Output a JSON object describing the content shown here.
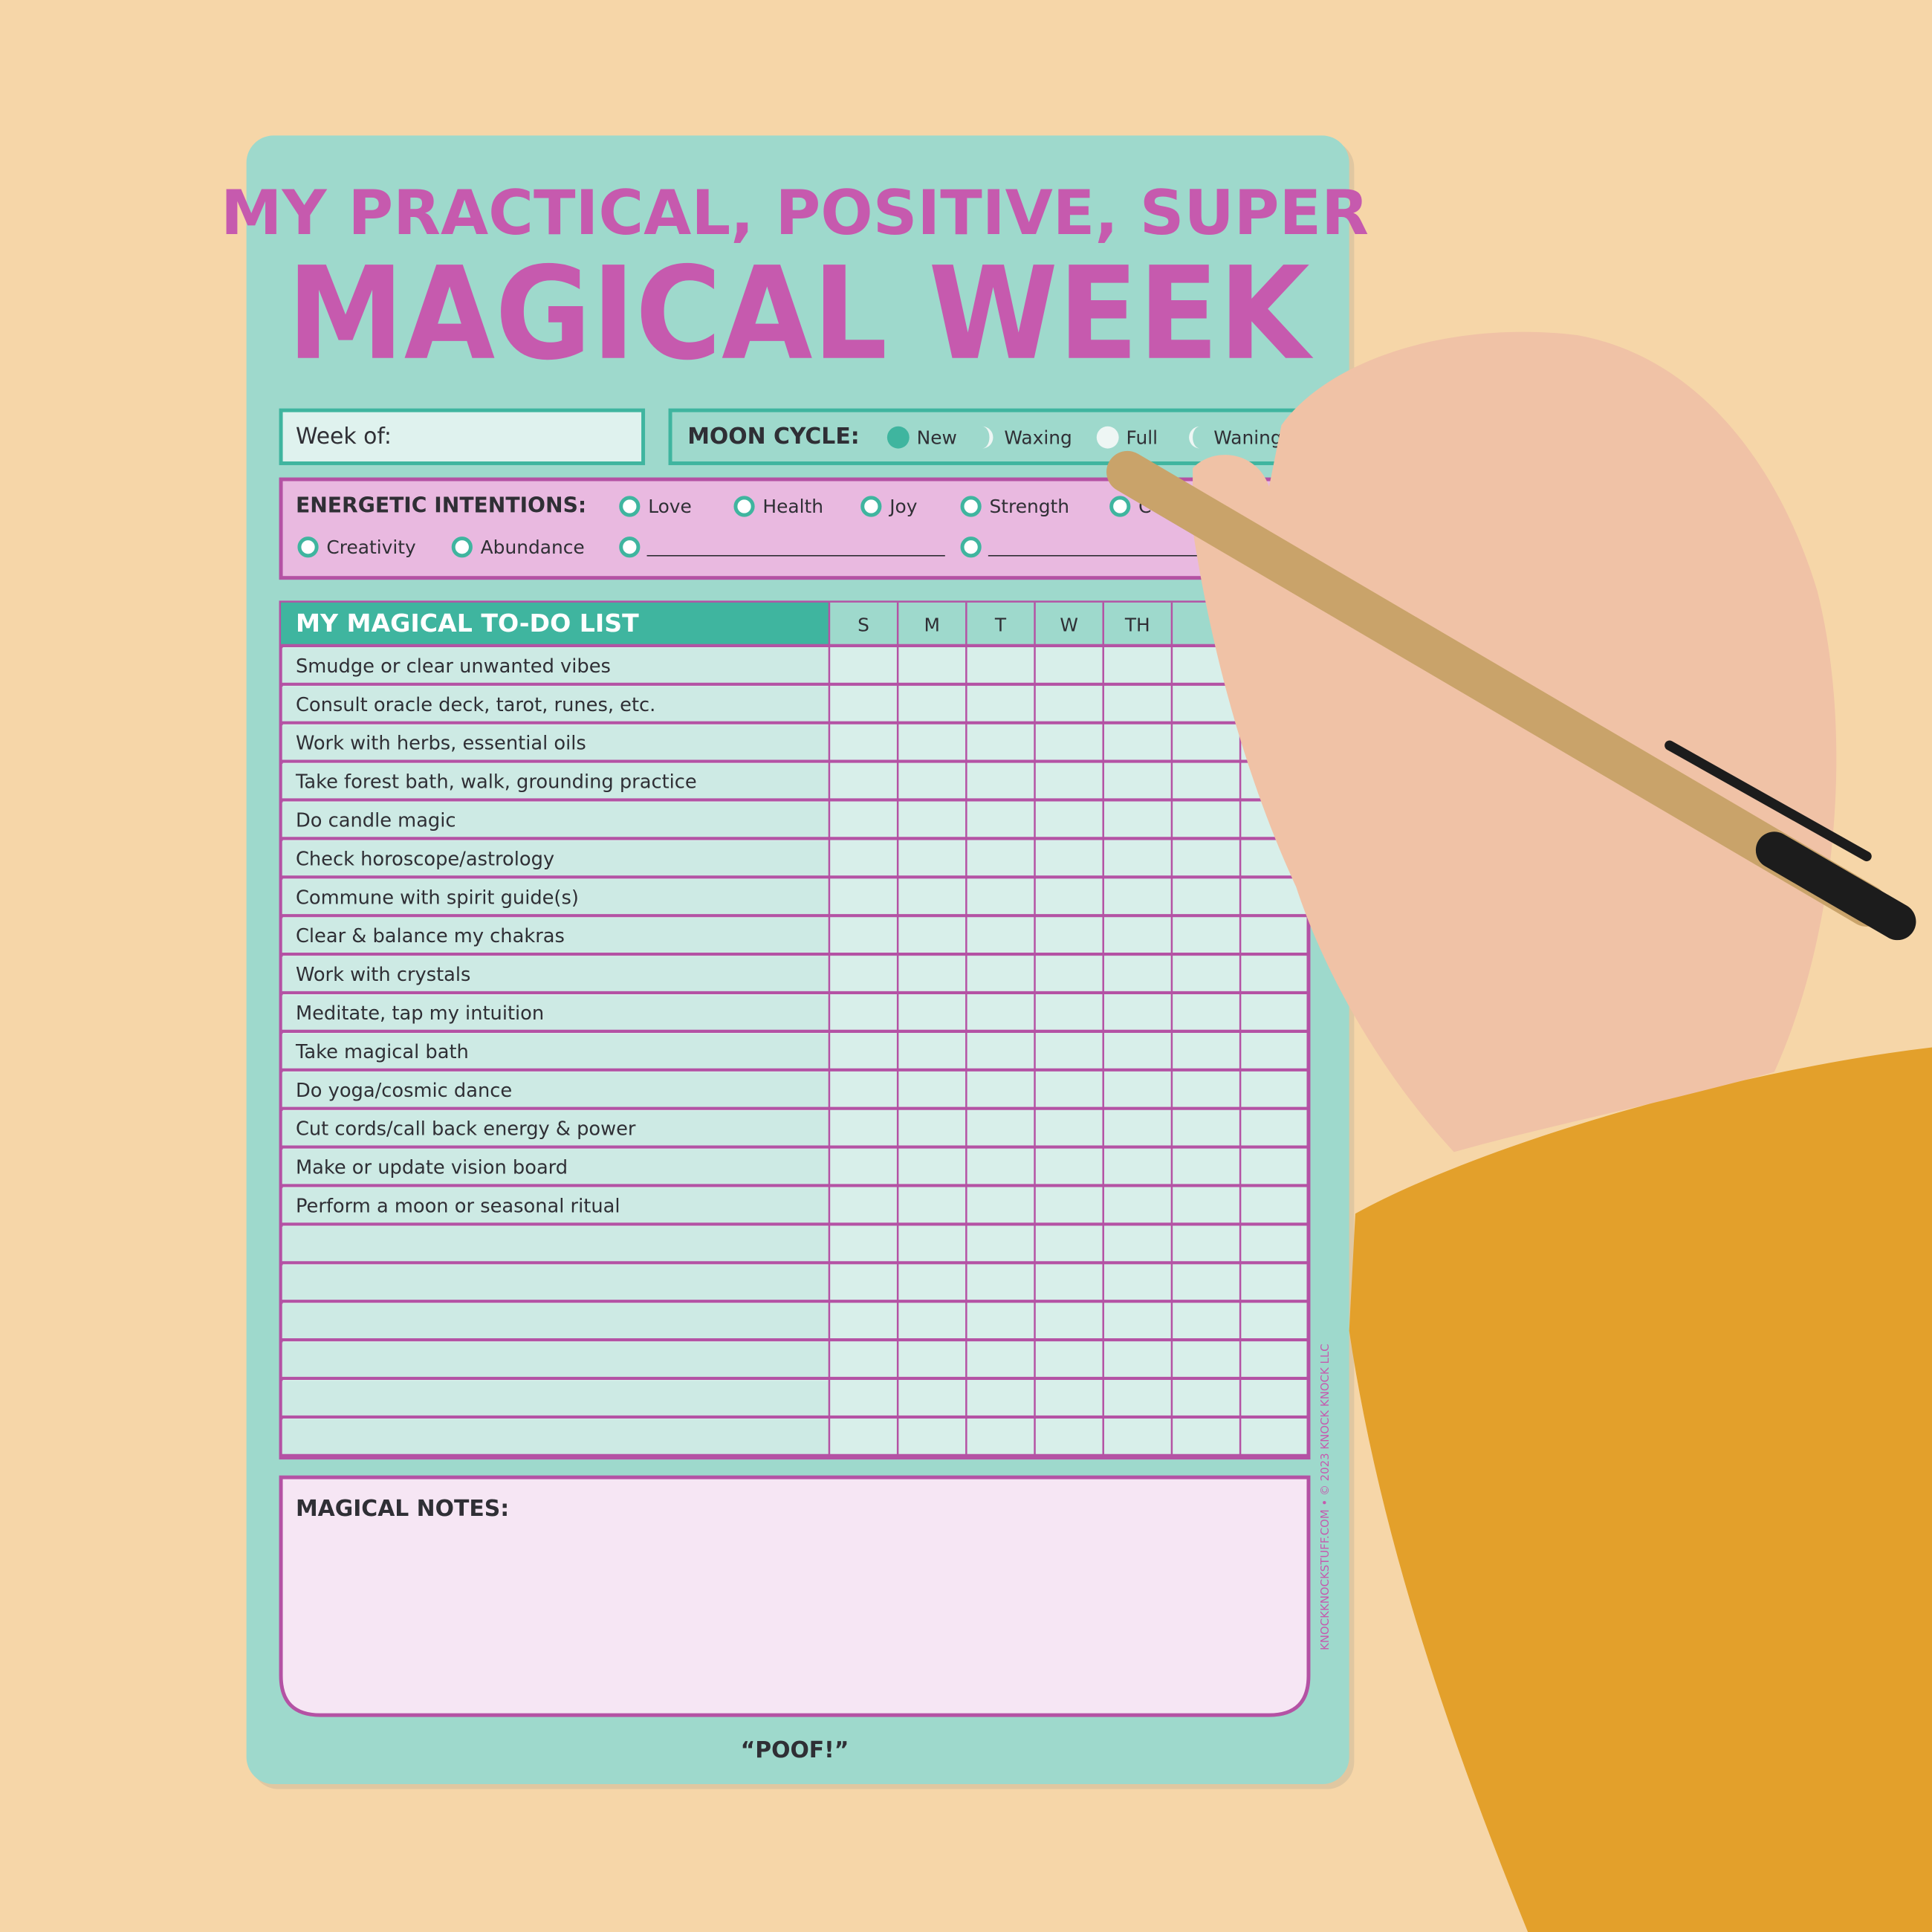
{
  "header": {
    "title_line1": "MY PRACTICAL, POSITIVE, SUPER",
    "title_line2": "MAGICAL WEEK"
  },
  "week_of": "Week of:",
  "moon_cycle": {
    "label": "MOON CYCLE:",
    "options": [
      "New",
      "Waxing",
      "Full",
      "Waning"
    ]
  },
  "intentions": {
    "label": "ENERGETIC INTENTIONS:",
    "options": [
      "Love",
      "Health",
      "Joy",
      "Strength",
      "C",
      "Creativity",
      "Abundance"
    ]
  },
  "todo": {
    "title": "MY MAGICAL TO-DO LIST",
    "days": [
      "S",
      "M",
      "T",
      "W",
      "TH"
    ],
    "items": [
      "Smudge or clear unwanted vibes",
      "Consult oracle deck, tarot, runes, etc.",
      "Work with herbs, essential oils",
      "Take forest bath, walk, grounding practice",
      "Do candle magic",
      "Check horoscope/astrology",
      "Commune with spirit guide(s)",
      "Clear & balance my chakras",
      "Work with crystals",
      "Meditate, tap my intuition",
      "Take magical bath",
      "Do yoga/cosmic dance",
      "Cut cords/call back energy & power",
      "Make or update vision board",
      "Perform a moon or seasonal ritual"
    ]
  },
  "notes": "MAGICAL NOTES:",
  "footer": "“POOF!”",
  "copyright": "KNOCKKNOCKSTUFF.COM • © 2023 KNOCK KNOCK LLC"
}
